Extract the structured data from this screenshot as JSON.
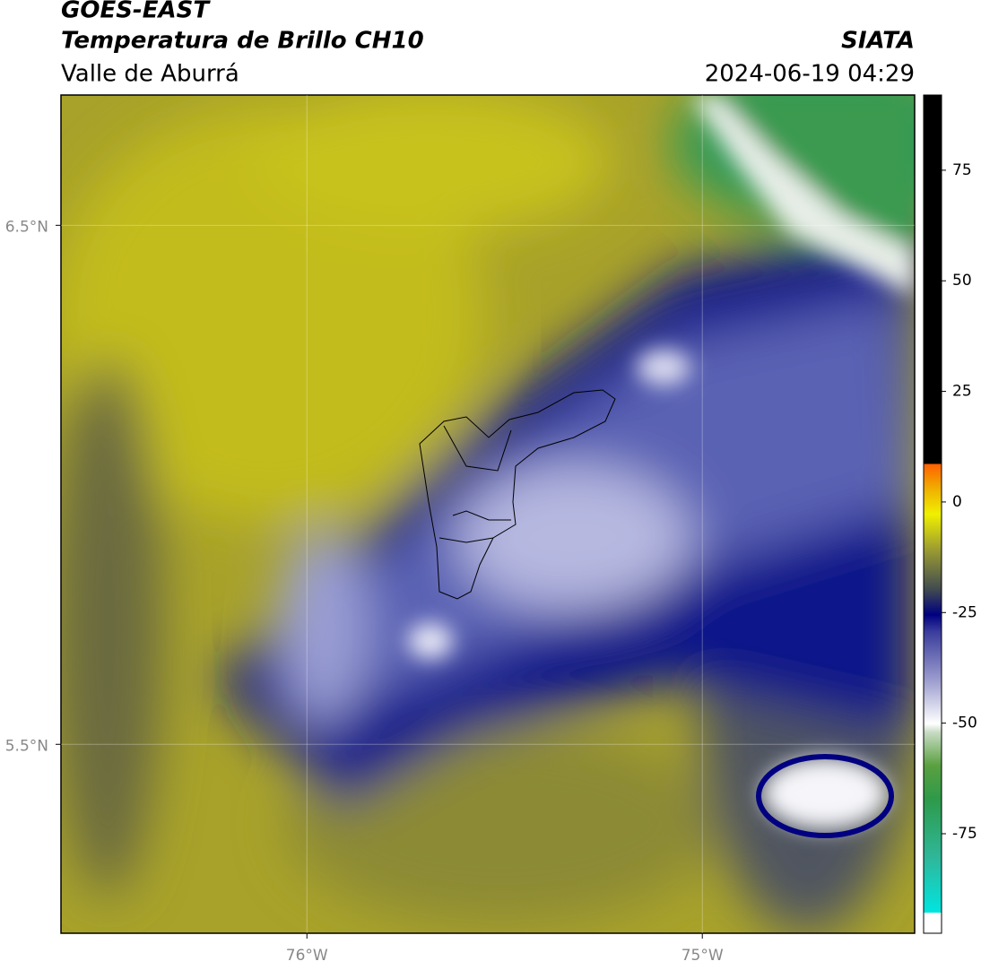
{
  "header": {
    "title": "GOES-EAST",
    "subtitle": "Temperatura de Brillo CH10",
    "region": "Valle de Aburrá",
    "source": "SIATA",
    "datetime": "2024-06-19 04:29"
  },
  "map": {
    "xlim": [
      -76.622,
      -74.463
    ],
    "ylim": [
      5.136,
      6.751
    ],
    "xticks": [
      {
        "value": -76,
        "label": "76°W"
      },
      {
        "value": -75,
        "label": "75°W"
      }
    ],
    "yticks": [
      {
        "value": 6.5,
        "label": "6.5°N"
      },
      {
        "value": 5.5,
        "label": "5.5°N"
      }
    ]
  },
  "colorbar": {
    "lim": [
      -97.5,
      92
    ],
    "ticks": [
      75,
      50,
      25,
      0,
      -25,
      -50,
      -75
    ]
  }
}
